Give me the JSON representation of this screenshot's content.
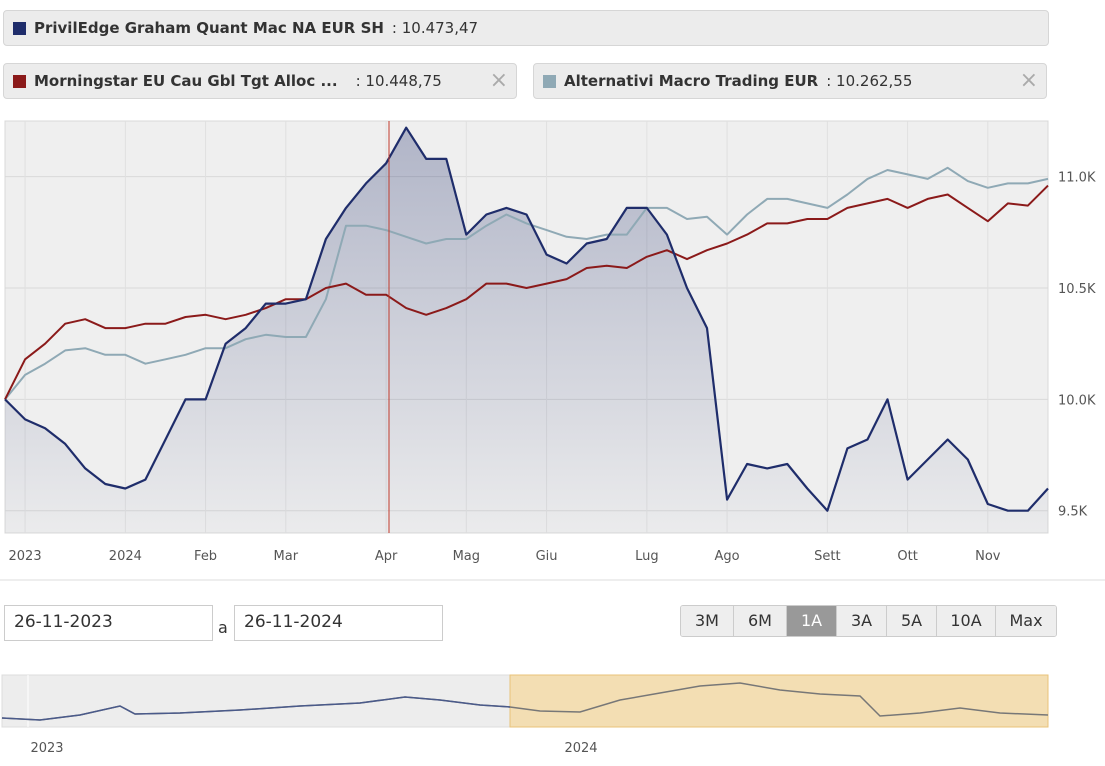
{
  "chart_data": {
    "type": "line",
    "categories": [
      null,
      "2023",
      null,
      null,
      null,
      null,
      "2024",
      null,
      null,
      null,
      "Feb",
      null,
      null,
      null,
      "Mar",
      null,
      null,
      null,
      null,
      "Apr",
      null,
      null,
      null,
      "Mag",
      null,
      null,
      null,
      "Giu",
      null,
      null,
      null,
      null,
      "Lug",
      null,
      null,
      null,
      "Ago",
      null,
      null,
      null,
      null,
      "Sett",
      null,
      null,
      null,
      "Ott",
      null,
      null,
      null,
      "Nov",
      null,
      null,
      null
    ],
    "series": [
      {
        "name": "PrivilEdge Graham Quant Mac NA EUR SH",
        "color": "#1f2d6b",
        "legend_label": ": 10.473,47",
        "values": [
          10000,
          9910,
          9870,
          9800,
          9690,
          9620,
          9600,
          9640,
          9820,
          10000,
          10000,
          10250,
          10320,
          10430,
          10430,
          10450,
          10720,
          10860,
          10970,
          11060,
          11220,
          11080,
          11080,
          10740,
          10830,
          10860,
          10830,
          10650,
          10610,
          10700,
          10720,
          10860,
          10860,
          10740,
          10500,
          10320,
          9550,
          9710,
          9690,
          9710,
          9600,
          9500,
          9780,
          9820,
          10000,
          9640,
          9730,
          9820,
          9730,
          9530,
          9500,
          9500,
          9600
        ]
      },
      {
        "name": "Morningstar EU Cau Gbl Tgt Alloc ...",
        "color": "#8b1a1a",
        "legend_label": ": 10.448,75",
        "values": [
          10000,
          10180,
          10250,
          10340,
          10360,
          10320,
          10320,
          10340,
          10340,
          10370,
          10380,
          10360,
          10380,
          10410,
          10450,
          10450,
          10500,
          10520,
          10470,
          10470,
          10410,
          10380,
          10410,
          10450,
          10520,
          10520,
          10500,
          10520,
          10540,
          10590,
          10600,
          10590,
          10640,
          10670,
          10630,
          10670,
          10700,
          10740,
          10790,
          10790,
          10810,
          10810,
          10860,
          10880,
          10900,
          10860,
          10900,
          10920,
          10860,
          10800,
          10880,
          10870,
          10960
        ]
      },
      {
        "name": "Alternativi Macro Trading EUR",
        "color": "#8fa9b5",
        "legend_label": ": 10.262,55",
        "values": [
          10000,
          10110,
          10160,
          10220,
          10230,
          10200,
          10200,
          10160,
          10180,
          10200,
          10230,
          10230,
          10270,
          10290,
          10280,
          10280,
          10450,
          10780,
          10780,
          10760,
          10730,
          10700,
          10720,
          10720,
          10780,
          10830,
          10790,
          10760,
          10730,
          10720,
          10740,
          10740,
          10860,
          10860,
          10810,
          10820,
          10740,
          10830,
          10900,
          10900,
          10880,
          10860,
          10920,
          10990,
          11030,
          11010,
          10990,
          11040,
          10980,
          10950,
          10970,
          10970,
          10990
        ]
      }
    ],
    "ylim": [
      9400,
      11250
    ],
    "yticks": [
      {
        "value": 9500,
        "label": "9.5K"
      },
      {
        "value": 10000,
        "label": "10.0K"
      },
      {
        "value": 10500,
        "label": "10.5K"
      },
      {
        "value": 11000,
        "label": "11.0K"
      }
    ],
    "grid": true
  },
  "controls": {
    "from": "26-11-2023",
    "separator": "a",
    "to": "26-11-2024",
    "ranges": [
      "3M",
      "6M",
      "1A",
      "3A",
      "5A",
      "10A",
      "Max"
    ],
    "selected": "1A"
  },
  "navigator": {
    "labels": [
      "2023",
      "2024"
    ]
  }
}
